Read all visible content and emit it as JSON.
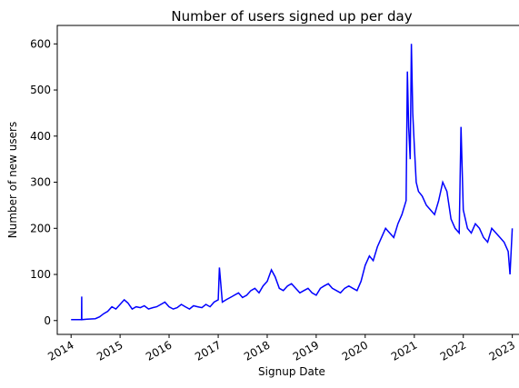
{
  "chart_data": {
    "type": "line",
    "title": "Number of users signed up per day",
    "xlabel": "Signup Date",
    "ylabel": "Number of new users",
    "x_axis_type": "date",
    "xlim": [
      "2013-09-20",
      "2023-04-15"
    ],
    "ylim": [
      -30,
      640
    ],
    "x_ticks": [
      "2014",
      "2015",
      "2016",
      "2017",
      "2018",
      "2019",
      "2020",
      "2021",
      "2022",
      "2023"
    ],
    "y_ticks": [
      0,
      100,
      200,
      300,
      400,
      500,
      600
    ],
    "grid": false,
    "legend": "none",
    "series": [
      {
        "color": "#0000ff",
        "x": [
          "2014-01-01",
          "2014-03-01",
          "2014-03-20",
          "2014-03-21",
          "2014-03-22",
          "2014-05-01",
          "2014-07-01",
          "2014-08-01",
          "2014-09-01",
          "2014-10-01",
          "2014-11-01",
          "2014-12-01",
          "2015-01-01",
          "2015-02-01",
          "2015-03-01",
          "2015-04-01",
          "2015-05-01",
          "2015-06-01",
          "2015-07-01",
          "2015-08-01",
          "2015-09-01",
          "2015-10-01",
          "2015-11-01",
          "2015-12-01",
          "2016-01-01",
          "2016-02-01",
          "2016-03-01",
          "2016-04-01",
          "2016-05-01",
          "2016-06-01",
          "2016-07-01",
          "2016-08-01",
          "2016-09-01",
          "2016-10-01",
          "2016-11-01",
          "2016-12-01",
          "2017-01-01",
          "2017-01-10",
          "2017-02-01",
          "2017-03-01",
          "2017-04-01",
          "2017-05-01",
          "2017-06-01",
          "2017-07-01",
          "2017-08-01",
          "2017-09-01",
          "2017-10-01",
          "2017-11-01",
          "2017-12-01",
          "2018-01-01",
          "2018-02-01",
          "2018-03-01",
          "2018-04-01",
          "2018-05-01",
          "2018-06-01",
          "2018-07-01",
          "2018-08-01",
          "2018-09-01",
          "2018-10-01",
          "2018-11-01",
          "2018-12-01",
          "2019-01-01",
          "2019-02-01",
          "2019-03-01",
          "2019-04-01",
          "2019-05-01",
          "2019-06-01",
          "2019-07-01",
          "2019-08-01",
          "2019-09-01",
          "2019-10-01",
          "2019-11-01",
          "2019-12-01",
          "2020-01-01",
          "2020-02-01",
          "2020-03-01",
          "2020-04-01",
          "2020-05-01",
          "2020-06-01",
          "2020-07-01",
          "2020-08-01",
          "2020-09-01",
          "2020-10-01",
          "2020-11-01",
          "2020-11-10",
          "2020-11-20",
          "2020-12-01",
          "2020-12-10",
          "2020-12-20",
          "2021-01-01",
          "2021-01-15",
          "2021-02-01",
          "2021-03-01",
          "2021-04-01",
          "2021-05-01",
          "2021-06-01",
          "2021-07-01",
          "2021-08-01",
          "2021-09-01",
          "2021-10-01",
          "2021-11-01",
          "2021-12-01",
          "2021-12-15",
          "2022-01-01",
          "2022-02-01",
          "2022-03-01",
          "2022-04-01",
          "2022-05-01",
          "2022-06-01",
          "2022-07-01",
          "2022-08-01",
          "2022-09-01",
          "2022-10-01",
          "2022-11-01",
          "2022-12-01",
          "2022-12-15",
          "2023-01-01"
        ],
        "values": [
          2,
          2,
          2,
          52,
          2,
          3,
          4,
          8,
          15,
          20,
          30,
          25,
          35,
          45,
          38,
          25,
          30,
          28,
          32,
          25,
          28,
          30,
          35,
          40,
          30,
          25,
          28,
          35,
          30,
          25,
          32,
          30,
          28,
          35,
          30,
          40,
          45,
          115,
          40,
          45,
          50,
          55,
          60,
          50,
          55,
          65,
          70,
          60,
          75,
          85,
          110,
          95,
          70,
          65,
          75,
          80,
          70,
          60,
          65,
          70,
          60,
          55,
          70,
          75,
          80,
          70,
          65,
          60,
          70,
          75,
          70,
          65,
          85,
          120,
          140,
          130,
          160,
          180,
          200,
          190,
          180,
          210,
          230,
          260,
          540,
          420,
          350,
          600,
          450,
          380,
          300,
          280,
          270,
          250,
          240,
          230,
          260,
          300,
          280,
          220,
          200,
          190,
          420,
          240,
          200,
          190,
          210,
          200,
          180,
          170,
          200,
          190,
          180,
          170,
          150,
          100,
          200
        ]
      }
    ]
  }
}
